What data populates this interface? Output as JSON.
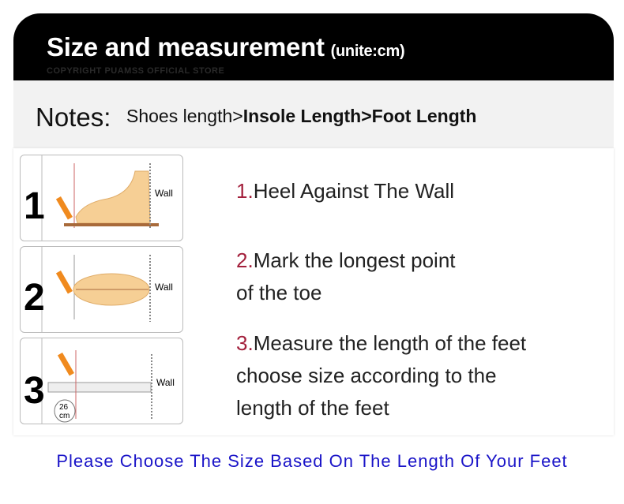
{
  "header": {
    "title": "Size and measurement",
    "unit": "(unite:cm)",
    "copyright": "COPYRIGHT PUAMSS OFFICIAL STORE"
  },
  "notes": {
    "label": "Notes:",
    "shoes": "Shoes length>",
    "insole": "Insole Length>",
    "foot": "Foot Length"
  },
  "panels": [
    {
      "number": "1",
      "wall": "Wall"
    },
    {
      "number": "2",
      "wall": "Wall"
    },
    {
      "number": "3",
      "wall": "Wall",
      "ruler_value": "26",
      "ruler_unit": "cm"
    }
  ],
  "steps": [
    {
      "num": "1.",
      "lines": [
        "Heel Against The Wall"
      ]
    },
    {
      "num": "2.",
      "lines": [
        "Mark the longest point",
        "of the toe"
      ]
    },
    {
      "num": "3.",
      "lines": [
        "Measure the length of the feet",
        "choose size according to the",
        "length of the feet"
      ]
    }
  ],
  "footer": "Please Choose The Size Based On The Length Of Your Feet",
  "colors": {
    "header_bg": "#000000",
    "step_number": "#a3203c",
    "footer_text": "#1a14c8"
  }
}
